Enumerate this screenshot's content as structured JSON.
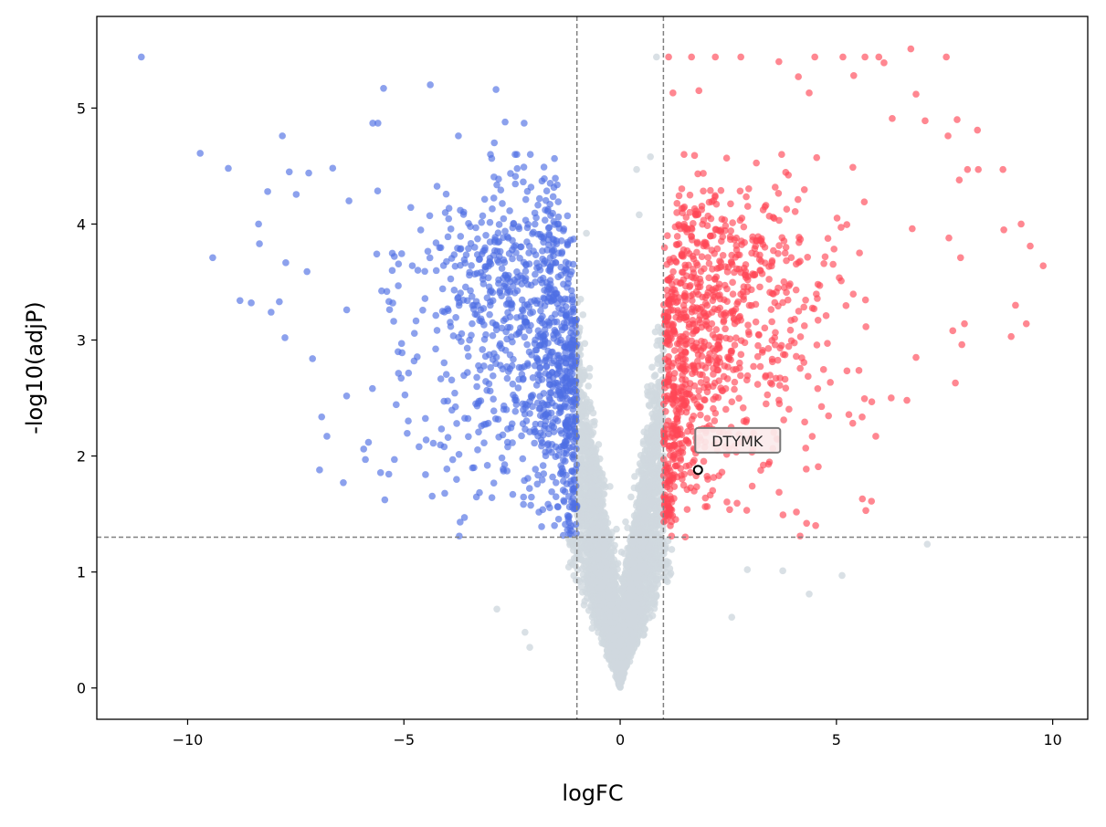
{
  "chart_data": {
    "type": "scatter",
    "title": "",
    "xlabel": "logFC",
    "ylabel": "-log10(adjP)",
    "xlim": [
      -12.1,
      10.81
    ],
    "ylim": [
      -0.27,
      5.79
    ],
    "xticks": [
      -10,
      -5,
      0,
      5,
      10
    ],
    "xtick_labels": [
      "−10",
      "−5",
      "0",
      "5",
      "10"
    ],
    "yticks": [
      0,
      1,
      2,
      3,
      4,
      5
    ],
    "ytick_labels": [
      "0",
      "1",
      "2",
      "3",
      "4",
      "5"
    ],
    "grid": false,
    "thresholds": {
      "logFC": [
        -1,
        1
      ],
      "neg_log10_adjP": 1.3
    },
    "colors": {
      "down": "#4f6ee3",
      "up": "#ff4656",
      "ns": "#d0d8df",
      "threshold": "#808080",
      "highlight": "#000000"
    },
    "categories": [
      "down",
      "up",
      "ns"
    ],
    "series": [
      {
        "name": "down",
        "points": [
          [
            -11.07,
            5.44
          ],
          [
            -9.71,
            4.61
          ],
          [
            -9.06,
            4.48
          ],
          [
            -9.42,
            3.71
          ],
          [
            -7.81,
            4.76
          ],
          [
            -8.15,
            4.28
          ],
          [
            -8.36,
            4.0
          ],
          [
            -8.34,
            3.83
          ],
          [
            -8.79,
            3.34
          ],
          [
            -8.53,
            3.32
          ],
          [
            -7.88,
            3.33
          ],
          [
            -8.07,
            3.24
          ],
          [
            -7.75,
            3.02
          ],
          [
            -7.24,
            3.59
          ],
          [
            -6.95,
            1.88
          ],
          [
            -6.4,
            1.77
          ],
          [
            -6.78,
            2.17
          ],
          [
            -5.47,
            5.17
          ],
          [
            -4.39,
            5.2
          ],
          [
            -2.87,
            5.16
          ],
          [
            -2.66,
            4.88
          ],
          [
            -2.22,
            4.87
          ],
          [
            -5.72,
            4.87
          ],
          [
            -5.6,
            4.87
          ],
          [
            -3.74,
            4.76
          ],
          [
            -2.91,
            4.7
          ],
          [
            -7.65,
            4.45
          ],
          [
            -7.2,
            4.44
          ],
          [
            -6.27,
            4.2
          ],
          [
            -5.89,
            1.97
          ],
          [
            -5.93,
            2.06
          ],
          [
            -5.22,
            1.97
          ],
          [
            -4.65,
            2.08
          ],
          [
            -4.5,
            1.84
          ],
          [
            -3.7,
            1.43
          ],
          [
            -3.6,
            1.47
          ],
          [
            -3.72,
            1.31
          ]
        ]
      },
      {
        "name": "up",
        "points": [
          [
            1.12,
            5.44
          ],
          [
            1.65,
            5.44
          ],
          [
            1.22,
            5.13
          ],
          [
            1.82,
            5.15
          ],
          [
            2.2,
            5.44
          ],
          [
            2.79,
            5.44
          ],
          [
            4.5,
            5.44
          ],
          [
            5.15,
            5.44
          ],
          [
            5.66,
            5.44
          ],
          [
            5.98,
            5.44
          ],
          [
            6.72,
            5.51
          ],
          [
            7.54,
            5.44
          ],
          [
            5.4,
            5.28
          ],
          [
            6.1,
            5.39
          ],
          [
            4.12,
            5.27
          ],
          [
            3.67,
            5.4
          ],
          [
            4.37,
            5.13
          ],
          [
            6.84,
            5.12
          ],
          [
            6.29,
            4.91
          ],
          [
            7.05,
            4.89
          ],
          [
            7.79,
            4.9
          ],
          [
            8.26,
            4.81
          ],
          [
            8.03,
            4.47
          ],
          [
            8.28,
            4.47
          ],
          [
            8.85,
            4.47
          ],
          [
            7.84,
            4.38
          ],
          [
            7.58,
            4.76
          ],
          [
            8.87,
            3.95
          ],
          [
            9.27,
            4.0
          ],
          [
            9.48,
            3.81
          ],
          [
            9.78,
            3.64
          ],
          [
            9.14,
            3.3
          ],
          [
            9.39,
            3.14
          ],
          [
            9.04,
            3.03
          ],
          [
            7.96,
            3.14
          ],
          [
            7.9,
            2.96
          ],
          [
            7.75,
            2.63
          ],
          [
            7.69,
            3.08
          ],
          [
            6.63,
            2.48
          ],
          [
            5.91,
            2.17
          ],
          [
            5.6,
            1.63
          ],
          [
            5.68,
            1.53
          ],
          [
            5.81,
            1.61
          ],
          [
            4.16,
            1.31
          ],
          [
            4.31,
            1.42
          ],
          [
            4.52,
            1.4
          ],
          [
            6.84,
            2.85
          ],
          [
            7.6,
            3.88
          ],
          [
            7.87,
            3.71
          ]
        ]
      },
      {
        "name": "ns",
        "points": [
          [
            0.84,
            5.44
          ],
          [
            0.7,
            4.58
          ],
          [
            0.38,
            4.47
          ],
          [
            0.44,
            4.08
          ],
          [
            -0.78,
            3.92
          ],
          [
            7.1,
            1.24
          ],
          [
            5.13,
            0.97
          ],
          [
            4.37,
            0.81
          ],
          [
            3.76,
            1.01
          ],
          [
            2.94,
            1.02
          ],
          [
            2.58,
            0.61
          ],
          [
            -2.85,
            0.68
          ],
          [
            -2.2,
            0.48
          ],
          [
            -2.09,
            0.35
          ]
        ]
      }
    ],
    "generated_bulk": {
      "n": 6500,
      "seed": 11,
      "narrow_sd": 0.55,
      "wide_sd": 2.1,
      "wide_fraction": 0.45
    },
    "annotations": [
      {
        "label": "DTYMK",
        "x": 1.8,
        "y": 1.88
      }
    ]
  }
}
